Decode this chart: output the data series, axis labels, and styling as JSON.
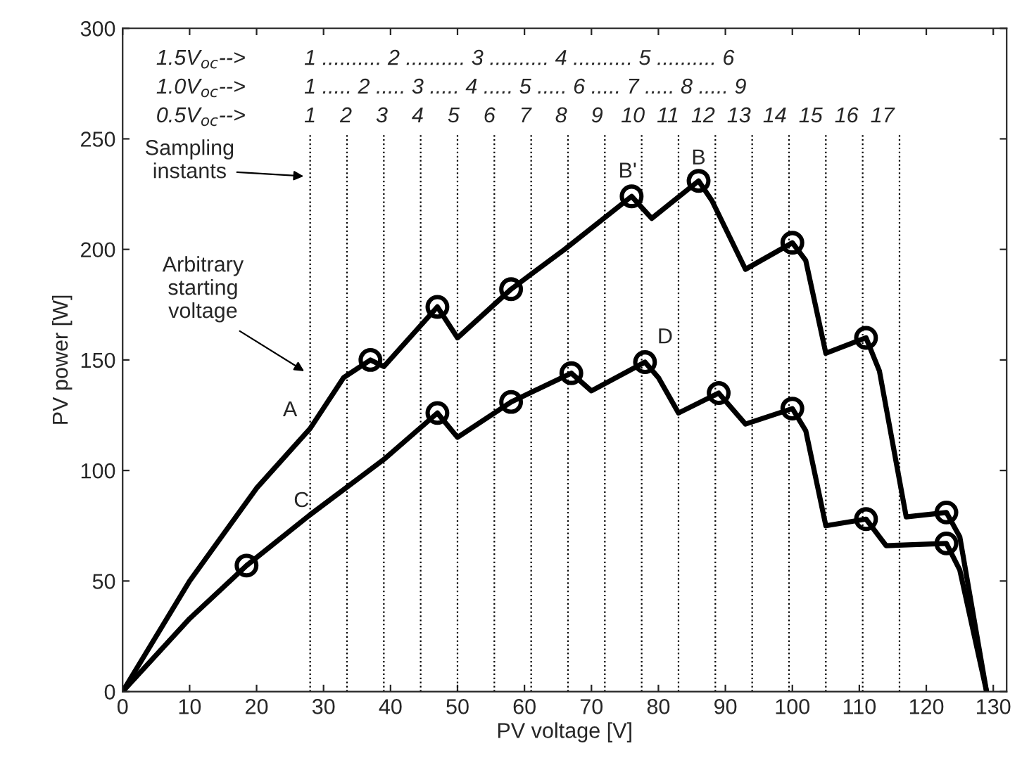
{
  "chart_data": {
    "type": "line",
    "xlabel": "PV voltage [V]",
    "ylabel": "PV power [W]",
    "xlim": [
      0,
      132
    ],
    "ylim": [
      0,
      300
    ],
    "xticks": [
      0,
      10,
      20,
      30,
      40,
      50,
      60,
      70,
      80,
      90,
      100,
      110,
      120,
      130
    ],
    "yticks": [
      0,
      50,
      100,
      150,
      200,
      250,
      300
    ],
    "grid": false,
    "legend": false,
    "series": [
      {
        "color": "#000000",
        "x": [
          0,
          10,
          20,
          28,
          33,
          37,
          39,
          47,
          50,
          58,
          66,
          76,
          79,
          86,
          88,
          93,
          100,
          102,
          105,
          111,
          113,
          117,
          123,
          125,
          129
        ],
        "values": [
          0,
          50,
          92,
          119,
          142,
          150,
          147,
          174,
          160,
          182,
          200,
          224,
          214,
          231,
          222,
          191,
          203,
          195,
          153,
          160,
          145,
          79,
          81,
          70,
          0
        ]
      },
      {
        "color": "#000000",
        "x": [
          0,
          10,
          18.5,
          28,
          39,
          47,
          50,
          58,
          67,
          70,
          78,
          80,
          83,
          89,
          93,
          100,
          102,
          105,
          111,
          114,
          123,
          125,
          129
        ],
        "values": [
          0,
          33,
          57,
          80,
          105,
          126,
          115,
          131,
          144,
          136,
          149,
          142,
          126,
          135,
          121,
          128,
          118,
          75,
          78,
          66,
          67,
          55,
          0
        ]
      },
      {
        "type": "scatter",
        "color": "#000000",
        "marker": "circle",
        "x": [
          37,
          47,
          58,
          76,
          86,
          100,
          111,
          123,
          18.5,
          47,
          58,
          67,
          78,
          89,
          100,
          111,
          123
        ],
        "values": [
          150,
          174,
          182,
          224,
          231,
          203,
          160,
          81,
          57,
          126,
          131,
          144,
          149,
          135,
          128,
          78,
          67
        ]
      }
    ],
    "ref_lines": [
      {
        "axis": "x",
        "value": 28,
        "line_style": "dotted"
      },
      {
        "axis": "x",
        "value": 33.5,
        "line_style": "dotted"
      },
      {
        "axis": "x",
        "value": 39,
        "line_style": "dotted"
      },
      {
        "axis": "x",
        "value": 44.5,
        "line_style": "dotted"
      },
      {
        "axis": "x",
        "value": 50,
        "line_style": "dotted"
      },
      {
        "axis": "x",
        "value": 55.5,
        "line_style": "dotted"
      },
      {
        "axis": "x",
        "value": 61,
        "line_style": "dotted"
      },
      {
        "axis": "x",
        "value": 66.5,
        "line_style": "dotted"
      },
      {
        "axis": "x",
        "value": 72,
        "line_style": "dotted"
      },
      {
        "axis": "x",
        "value": 77.5,
        "line_style": "dotted"
      },
      {
        "axis": "x",
        "value": 83,
        "line_style": "dotted"
      },
      {
        "axis": "x",
        "value": 88.5,
        "line_style": "dotted"
      },
      {
        "axis": "x",
        "value": 94,
        "line_style": "dotted"
      },
      {
        "axis": "x",
        "value": 99.5,
        "line_style": "dotted"
      },
      {
        "axis": "x",
        "value": 105,
        "line_style": "dotted"
      },
      {
        "axis": "x",
        "value": 110.5,
        "line_style": "dotted"
      },
      {
        "axis": "x",
        "value": 116,
        "line_style": "dotted"
      }
    ],
    "annotations": [
      "Sampling\ninstants",
      "Arbitrary\nstarting\nvoltage",
      "A",
      "C",
      "D",
      "B'",
      "B",
      "1.5V$_{oc}$-->",
      "1.0V$_{oc}$-->",
      "0.5V$_{oc}$-->",
      "1 .......... 2 .......... 3 .......... 4 .......... 5 .......... 6",
      "1 ..... 2 ..... 3 ..... 4 ..... 5 ..... 6 ..... 7 ..... 8 ..... 9",
      "1    2    3    4    5    6    7    8    9   10  11  12  13  14  15  16  17"
    ]
  }
}
